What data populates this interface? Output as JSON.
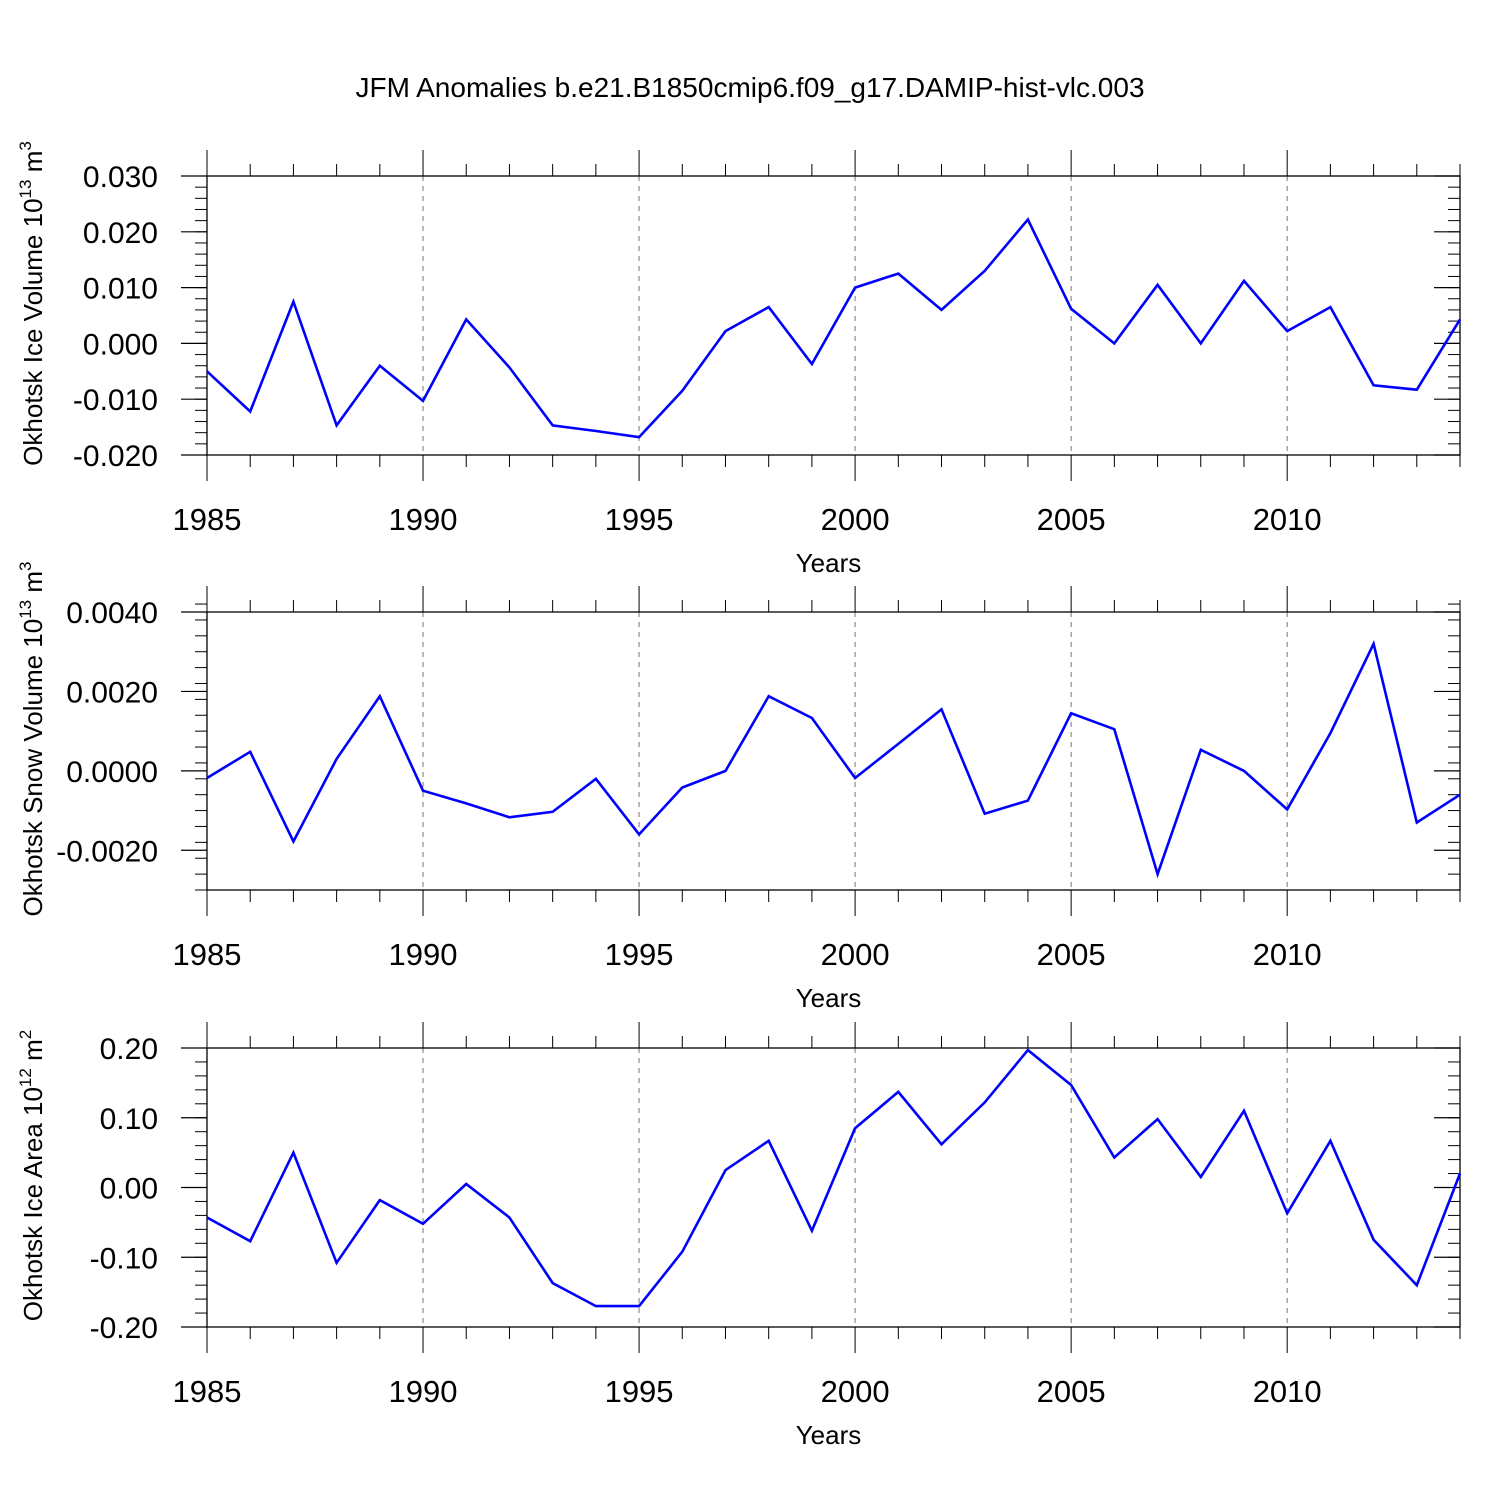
{
  "title": "JFM Anomalies b.e21.B1850cmip6.f09_g17.DAMIP-hist-vlc.003",
  "colors": {
    "line": "#0000ff",
    "axis": "#000000",
    "gridline": "#8c8c8c"
  },
  "chart_data": [
    {
      "type": "line",
      "xlabel": "Years",
      "ylabel": "Okhotsk Ice Volume 10",
      "ylabel_exp": "13",
      "ylabel_unit": "m",
      "ylabel_unit_exp": "3",
      "xlim": [
        1985,
        2014
      ],
      "ylim": [
        -0.02,
        0.03
      ],
      "yticks": [
        -0.02,
        -0.01,
        0.0,
        0.01,
        0.02,
        0.03
      ],
      "ytick_labels": [
        "-0.020",
        "-0.010",
        "0.000",
        "0.010",
        "0.020",
        "0.030"
      ],
      "yminor_step": 0.002,
      "xticks": [
        1985,
        1990,
        1995,
        2000,
        2005,
        2010
      ],
      "xtick_labels": [
        "1985",
        "1990",
        "1995",
        "2000",
        "2005",
        "2010"
      ],
      "grid_x": [
        1990,
        1995,
        2000,
        2005,
        2010
      ],
      "x": [
        1985,
        1986,
        1987,
        1988,
        1989,
        1990,
        1991,
        1992,
        1993,
        1994,
        1995,
        1996,
        1997,
        1998,
        1999,
        2000,
        2001,
        2002,
        2003,
        2004,
        2005,
        2006,
        2007,
        2008,
        2009,
        2010,
        2011,
        2012,
        2013,
        2014
      ],
      "values": [
        -0.005,
        -0.0122,
        0.0075,
        -0.0147,
        -0.004,
        -0.0103,
        0.0043,
        -0.0043,
        -0.0147,
        -0.0157,
        -0.0168,
        -0.0085,
        0.0022,
        0.0065,
        -0.0037,
        0.01,
        0.0125,
        0.006,
        0.013,
        0.0222,
        0.0062,
        0.0,
        0.0105,
        0.0,
        0.0112,
        0.0022,
        0.0065,
        -0.0075,
        -0.0083,
        0.0043
      ]
    },
    {
      "type": "line",
      "xlabel": "Years",
      "ylabel": "Okhotsk Snow Volume 10",
      "ylabel_exp": "13",
      "ylabel_unit": "m",
      "ylabel_unit_exp": "3",
      "xlim": [
        1985,
        2014
      ],
      "ylim": [
        -0.003,
        0.004
      ],
      "yticks": [
        -0.002,
        0.0,
        0.002,
        0.004
      ],
      "ytick_labels": [
        "-0.0020",
        "0.0000",
        "0.0020",
        "0.0040"
      ],
      "yminor_step": 0.0004,
      "xticks": [
        1985,
        1990,
        1995,
        2000,
        2005,
        2010
      ],
      "xtick_labels": [
        "1985",
        "1990",
        "1995",
        "2000",
        "2005",
        "2010"
      ],
      "grid_x": [
        1990,
        1995,
        2000,
        2005,
        2010
      ],
      "x": [
        1985,
        1986,
        1987,
        1988,
        1989,
        1990,
        1991,
        1992,
        1993,
        1994,
        1995,
        1996,
        1997,
        1998,
        1999,
        2000,
        2001,
        2002,
        2003,
        2004,
        2005,
        2006,
        2007,
        2008,
        2009,
        2010,
        2011,
        2012,
        2013,
        2014
      ],
      "values": [
        -0.00018,
        0.00048,
        -0.00178,
        0.0003,
        0.00188,
        -0.0005,
        -0.00082,
        -0.00117,
        -0.00103,
        -0.0002,
        -0.0016,
        -0.00042,
        0.0,
        0.00188,
        0.00133,
        -0.00018,
        0.00068,
        0.00155,
        -0.00108,
        -0.00075,
        0.00145,
        0.00105,
        -0.0026,
        0.00053,
        0.0,
        -0.00097,
        0.00095,
        0.0032,
        -0.0013,
        -0.0006
      ]
    },
    {
      "type": "line",
      "xlabel": "Years",
      "ylabel": "Okhotsk Ice Area 10",
      "ylabel_exp": "12",
      "ylabel_unit": "m",
      "ylabel_unit_exp": "2",
      "xlim": [
        1985,
        2014
      ],
      "ylim": [
        -0.2,
        0.2
      ],
      "yticks": [
        -0.2,
        -0.1,
        0.0,
        0.1,
        0.2
      ],
      "ytick_labels": [
        "-0.20",
        "-0.10",
        "0.00",
        "0.10",
        "0.20"
      ],
      "yminor_step": 0.02,
      "xticks": [
        1985,
        1990,
        1995,
        2000,
        2005,
        2010
      ],
      "xtick_labels": [
        "1985",
        "1990",
        "1995",
        "2000",
        "2005",
        "2010"
      ],
      "grid_x": [
        1990,
        1995,
        2000,
        2005,
        2010
      ],
      "x": [
        1985,
        1986,
        1987,
        1988,
        1989,
        1990,
        1991,
        1992,
        1993,
        1994,
        1995,
        1996,
        1997,
        1998,
        1999,
        2000,
        2001,
        2002,
        2003,
        2004,
        2005,
        2006,
        2007,
        2008,
        2009,
        2010,
        2011,
        2012,
        2013,
        2014
      ],
      "values": [
        -0.043,
        -0.077,
        0.05,
        -0.108,
        -0.018,
        -0.052,
        0.005,
        -0.043,
        -0.137,
        -0.17,
        -0.17,
        -0.092,
        0.025,
        0.067,
        -0.062,
        0.085,
        0.137,
        0.062,
        0.122,
        0.197,
        0.147,
        0.043,
        0.098,
        0.015,
        0.11,
        -0.037,
        0.067,
        -0.075,
        -0.14,
        0.02
      ]
    }
  ]
}
